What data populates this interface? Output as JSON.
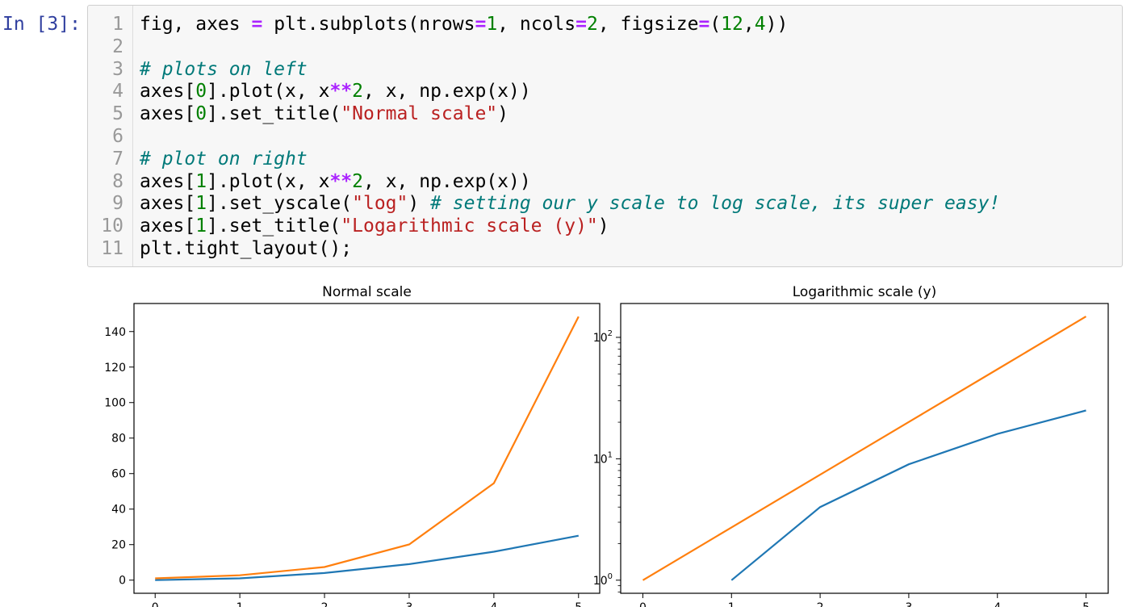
{
  "prompt": "In [3]:",
  "line_numbers": [
    "1",
    "2",
    "3",
    "4",
    "5",
    "6",
    "7",
    "8",
    "9",
    "10",
    "11"
  ],
  "code_lines": [
    [
      {
        "t": "fig, axes ",
        "c": ""
      },
      {
        "t": "=",
        "c": "op"
      },
      {
        "t": " plt.subplots(nrows",
        "c": ""
      },
      {
        "t": "=",
        "c": "op"
      },
      {
        "t": "1",
        "c": "num"
      },
      {
        "t": ", ncols",
        "c": ""
      },
      {
        "t": "=",
        "c": "op"
      },
      {
        "t": "2",
        "c": "num"
      },
      {
        "t": ", figsize",
        "c": ""
      },
      {
        "t": "=",
        "c": "op"
      },
      {
        "t": "(",
        "c": ""
      },
      {
        "t": "12",
        "c": "num"
      },
      {
        "t": ",",
        "c": ""
      },
      {
        "t": "4",
        "c": "num"
      },
      {
        "t": "))",
        "c": ""
      }
    ],
    [],
    [
      {
        "t": "# plots on left",
        "c": "com"
      }
    ],
    [
      {
        "t": "axes[",
        "c": ""
      },
      {
        "t": "0",
        "c": "num"
      },
      {
        "t": "].plot(x, x",
        "c": ""
      },
      {
        "t": "**",
        "c": "op"
      },
      {
        "t": "2",
        "c": "num"
      },
      {
        "t": ", x, np.exp(x))",
        "c": ""
      }
    ],
    [
      {
        "t": "axes[",
        "c": ""
      },
      {
        "t": "0",
        "c": "num"
      },
      {
        "t": "].set_title(",
        "c": ""
      },
      {
        "t": "\"Normal scale\"",
        "c": "str"
      },
      {
        "t": ")",
        "c": ""
      }
    ],
    [],
    [
      {
        "t": "# plot on right",
        "c": "com"
      }
    ],
    [
      {
        "t": "axes[",
        "c": ""
      },
      {
        "t": "1",
        "c": "num"
      },
      {
        "t": "].plot(x, x",
        "c": ""
      },
      {
        "t": "**",
        "c": "op"
      },
      {
        "t": "2",
        "c": "num"
      },
      {
        "t": ", x, np.exp(x))",
        "c": ""
      }
    ],
    [
      {
        "t": "axes[",
        "c": ""
      },
      {
        "t": "1",
        "c": "num"
      },
      {
        "t": "].set_yscale(",
        "c": ""
      },
      {
        "t": "\"log\"",
        "c": "str"
      },
      {
        "t": ") ",
        "c": ""
      },
      {
        "t": "# setting our y scale to log scale, its super easy!",
        "c": "com"
      }
    ],
    [
      {
        "t": "axes[",
        "c": ""
      },
      {
        "t": "1",
        "c": "num"
      },
      {
        "t": "].set_title(",
        "c": ""
      },
      {
        "t": "\"Logarithmic scale (y)\"",
        "c": "str"
      },
      {
        "t": ")",
        "c": ""
      }
    ],
    [
      {
        "t": "plt.tight_layout();",
        "c": ""
      }
    ]
  ],
  "colors": {
    "series1": "#1f77b4",
    "series2": "#ff7f0e"
  },
  "chart_data": [
    {
      "type": "line",
      "title": "Normal scale",
      "xlabel": "",
      "ylabel": "",
      "xlim": [
        -0.25,
        5.25
      ],
      "ylim": [
        -7.4,
        155.8
      ],
      "yscale": "linear",
      "grid": false,
      "x_ticks": [
        0,
        1,
        2,
        3,
        4,
        5
      ],
      "x_tick_labels": [
        "0",
        "1",
        "2",
        "3",
        "4",
        "5"
      ],
      "y_ticks": [
        0,
        20,
        40,
        60,
        80,
        100,
        120,
        140
      ],
      "y_tick_labels": [
        "0",
        "20",
        "40",
        "60",
        "80",
        "100",
        "120",
        "140"
      ],
      "series": [
        {
          "x": [
            0,
            1,
            2,
            3,
            4,
            5
          ],
          "y": [
            0,
            1,
            4,
            9,
            16,
            25
          ]
        },
        {
          "x": [
            0,
            1,
            2,
            3,
            4,
            5
          ],
          "y": [
            1,
            2.718,
            7.389,
            20.086,
            54.598,
            148.413
          ]
        }
      ]
    },
    {
      "type": "line",
      "title": "Logarithmic scale (y)",
      "xlabel": "",
      "ylabel": "",
      "xlim": [
        -0.25,
        5.25
      ],
      "ylim": [
        0.78,
        190
      ],
      "yscale": "log",
      "grid": false,
      "x_ticks": [
        0,
        1,
        2,
        3,
        4,
        5
      ],
      "x_tick_labels": [
        "0",
        "1",
        "2",
        "3",
        "4",
        "5"
      ],
      "y_ticks": [
        1,
        10,
        100
      ],
      "y_tick_labels": [
        {
          "base": "10",
          "exp": "0"
        },
        {
          "base": "10",
          "exp": "1"
        },
        {
          "base": "10",
          "exp": "2"
        }
      ],
      "series": [
        {
          "x": [
            1,
            2,
            3,
            4,
            5
          ],
          "y": [
            1,
            4,
            9,
            16,
            25
          ]
        },
        {
          "x": [
            0,
            1,
            2,
            3,
            4,
            5
          ],
          "y": [
            1,
            2.718,
            7.389,
            20.086,
            54.598,
            148.413
          ]
        }
      ]
    }
  ]
}
